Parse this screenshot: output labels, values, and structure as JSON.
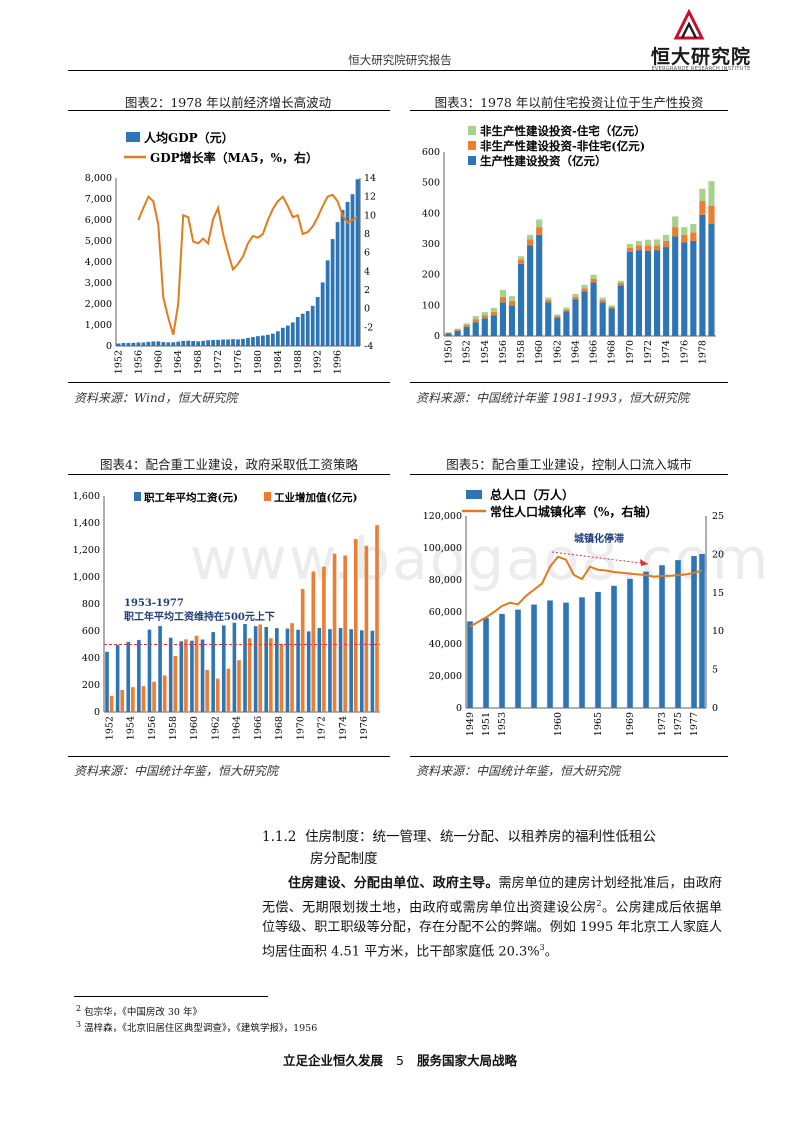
{
  "header": {
    "title": "恒大研究院研究报告",
    "logo_name": "恒大研究院",
    "logo_sub": "EVERGRANDE RESEARCH INSTITUTE",
    "logo_color": "#c8102e"
  },
  "watermark": "www.baogao8.com",
  "figures": {
    "fig2": {
      "title": "图表2：1978 年以前经济增长高波动",
      "source": "资料来源：Wind，恒大研究院"
    },
    "fig3": {
      "title": "图表3：1978 年以前住宅投资让位于生产性投资",
      "source": "资料来源：中国统计年鉴 1981-1993，恒大研究院"
    },
    "fig4": {
      "title": "图表4：配合重工业建设，政府采取低工资策略",
      "source": "资料来源：中国统计年鉴，恒大研究院"
    },
    "fig5": {
      "title": "图表5：配合重工业建设，控制人口流入城市",
      "source": "资料来源：中国统计年鉴，恒大研究院"
    }
  },
  "chart_data": [
    {
      "id": "fig2",
      "type": "bar+line",
      "series": [
        {
          "name": "人均GDP（元）",
          "type": "bar",
          "axis": "left",
          "color": "#2e75b6",
          "x": [
            1952,
            1953,
            1954,
            1955,
            1956,
            1957,
            1958,
            1959,
            1960,
            1961,
            1962,
            1963,
            1964,
            1965,
            1966,
            1967,
            1968,
            1969,
            1970,
            1971,
            1972,
            1973,
            1974,
            1975,
            1976,
            1977,
            1978,
            1979,
            1980,
            1981,
            1982,
            1983,
            1984,
            1985,
            1986,
            1987,
            1988,
            1989,
            1990,
            1991,
            1992,
            1993,
            1994,
            1995,
            1996,
            1997,
            1998,
            1999,
            2000
          ],
          "values": [
            119,
            142,
            144,
            150,
            166,
            168,
            200,
            216,
            218,
            185,
            173,
            181,
            208,
            240,
            254,
            235,
            222,
            243,
            275,
            288,
            292,
            309,
            310,
            327,
            316,
            339,
            385,
            423,
            468,
            497,
            533,
            588,
            702,
            866,
            973,
            1123,
            1378,
            1536,
            1663,
            1912,
            2334,
            3027,
            4081,
            5091,
            5898,
            6481,
            6860,
            7229,
            7942
          ]
        },
        {
          "name": "GDP增长率（MA5，%，右）",
          "type": "line",
          "axis": "right",
          "color": "#e07b1e",
          "x": [
            1956,
            1957,
            1958,
            1959,
            1960,
            1961,
            1962,
            1963,
            1964,
            1965,
            1966,
            1967,
            1968,
            1969,
            1970,
            1971,
            1972,
            1973,
            1974,
            1975,
            1976,
            1977,
            1978,
            1979,
            1980,
            1981,
            1982,
            1983,
            1984,
            1985,
            1986,
            1987,
            1988,
            1989,
            1990,
            1991,
            1992,
            1993,
            1994,
            1995,
            1996,
            1997,
            1998,
            1999,
            2000
          ],
          "values": [
            9.5,
            10.8,
            12,
            11.5,
            9,
            1.2,
            -1,
            -2.8,
            0.5,
            10,
            9.8,
            7.2,
            7,
            7.5,
            7,
            9.6,
            10.8,
            8,
            6,
            4.2,
            4.8,
            5.6,
            7,
            7.8,
            7.6,
            8,
            9.5,
            10.7,
            11.5,
            12,
            11,
            9.8,
            10,
            8,
            8.2,
            8.8,
            9.8,
            11,
            12,
            12.2,
            11.5,
            10,
            9.2,
            9.5,
            9.8
          ]
        }
      ],
      "xticks": [
        "1952",
        "1956",
        "1960",
        "1964",
        "1968",
        "1972",
        "1976",
        "1980",
        "1984",
        "1988",
        "1992",
        "1996"
      ],
      "ylim_left": [
        0,
        8000
      ],
      "yticks_left": [
        "0",
        "1,000",
        "2,000",
        "3,000",
        "4,000",
        "5,000",
        "6,000",
        "7,000",
        "8,000"
      ],
      "ylim_right": [
        -4,
        14
      ],
      "yticks_right": [
        "-4",
        "-2",
        "0",
        "2",
        "4",
        "6",
        "8",
        "10",
        "12",
        "14"
      ],
      "legend": "top-left"
    },
    {
      "id": "fig3",
      "type": "stacked-bar",
      "x": [
        1950,
        1951,
        1952,
        1953,
        1954,
        1955,
        1956,
        1957,
        1958,
        1959,
        1960,
        1961,
        1962,
        1963,
        1964,
        1965,
        1966,
        1967,
        1968,
        1969,
        1970,
        1971,
        1972,
        1973,
        1974,
        1975,
        1976,
        1977,
        1978,
        1979
      ],
      "series": [
        {
          "name": "生产性建设投资（亿元）",
          "color": "#2e75b6",
          "values": [
            9,
            17,
            30,
            45,
            58,
            67,
            110,
            100,
            235,
            295,
            330,
            110,
            60,
            80,
            120,
            145,
            175,
            110,
            90,
            165,
            275,
            280,
            278,
            280,
            290,
            325,
            305,
            310,
            395,
            365
          ]
        },
        {
          "name": "非生产性建设投资-非住宅(亿元)",
          "color": "#ed7d31",
          "values": [
            2,
            4,
            6,
            10,
            10,
            12,
            18,
            14,
            15,
            20,
            25,
            8,
            5,
            6,
            8,
            10,
            12,
            8,
            5,
            8,
            12,
            15,
            18,
            16,
            20,
            30,
            25,
            28,
            45,
            60
          ]
        },
        {
          "name": "非生产性建设投资-住宅（亿元）",
          "color": "#a9d18e",
          "values": [
            1,
            3,
            5,
            10,
            10,
            13,
            22,
            16,
            10,
            15,
            25,
            7,
            5,
            7,
            9,
            12,
            13,
            7,
            5,
            7,
            13,
            15,
            18,
            19,
            20,
            35,
            25,
            27,
            40,
            80
          ]
        }
      ],
      "xticks": [
        "1950",
        "1952",
        "1954",
        "1956",
        "1958",
        "1960",
        "1962",
        "1964",
        "1966",
        "1968",
        "1970",
        "1972",
        "1974",
        "1976",
        "1978"
      ],
      "ylim": [
        0,
        600
      ],
      "yticks": [
        "0",
        "100",
        "200",
        "300",
        "400",
        "500",
        "600"
      ],
      "legend": "top-left"
    },
    {
      "id": "fig4",
      "type": "grouped-bar",
      "x": [
        1952,
        1953,
        1954,
        1955,
        1956,
        1957,
        1958,
        1959,
        1960,
        1961,
        1962,
        1963,
        1964,
        1965,
        1966,
        1967,
        1968,
        1969,
        1970,
        1971,
        1972,
        1973,
        1974,
        1975,
        1976,
        1977
      ],
      "series": [
        {
          "name": "职工年平均工资(元)",
          "color": "#2e75b6",
          "values": [
            446,
            496,
            519,
            534,
            610,
            637,
            550,
            524,
            528,
            537,
            592,
            641,
            661,
            652,
            636,
            630,
            621,
            618,
            609,
            597,
            622,
            614,
            622,
            613,
            605,
            602
          ]
        },
        {
          "name": "工业增加值(亿元)",
          "color": "#ed7d31",
          "values": [
            120,
            163,
            184,
            192,
            224,
            271,
            415,
            538,
            565,
            311,
            247,
            321,
            383,
            546,
            648,
            546,
            505,
            658,
            911,
            1041,
            1077,
            1173,
            1159,
            1281,
            1231,
            1384
          ]
        }
      ],
      "reference_line": {
        "value": 500,
        "color": "#e0303c"
      },
      "annotation": [
        "1953-1977",
        "职工年平均工资维持在500元上下"
      ],
      "xticks": [
        "1952",
        "1954",
        "1956",
        "1958",
        "1960",
        "1962",
        "1964",
        "1966",
        "1968",
        "1970",
        "1972",
        "1974",
        "1976"
      ],
      "ylim": [
        0,
        1600
      ],
      "yticks": [
        "0",
        "200",
        "400",
        "600",
        "800",
        "1,000",
        "1,200",
        "1,400",
        "1,600"
      ],
      "legend": "top"
    },
    {
      "id": "fig5",
      "type": "bar+line",
      "x": [
        1949,
        1950,
        1951,
        1952,
        1953,
        1954,
        1955,
        1956,
        1957,
        1958,
        1959,
        1960,
        1961,
        1962,
        1963,
        1964,
        1965,
        1966,
        1967,
        1968,
        1969,
        1970,
        1971,
        1972,
        1973,
        1974,
        1975,
        1976,
        1977,
        1978
      ],
      "series": [
        {
          "name": "总人口（万人）",
          "type": "bar",
          "axis": "left",
          "color": "#2e75b6",
          "values": [
            54167,
            55196,
            56300,
            57482,
            58796,
            60266,
            61465,
            62828,
            64653,
            65994,
            67207,
            66207,
            65859,
            67295,
            69172,
            70499,
            72538,
            74542,
            76368,
            78534,
            80671,
            82992,
            85229,
            87177,
            89211,
            90859,
            92420,
            93717,
            94974,
            96259
          ]
        },
        {
          "name": "常住人口城镇化率（%，右轴）",
          "type": "line",
          "axis": "right",
          "color": "#e07b1e",
          "values": [
            10.6,
            11.2,
            11.8,
            12.5,
            13.3,
            13.7,
            13.5,
            14.6,
            15.4,
            16.2,
            18.4,
            19.7,
            19.3,
            17.3,
            16.8,
            18.4,
            18.0,
            17.9,
            17.7,
            17.6,
            17.5,
            17.4,
            17.3,
            17.1,
            17.2,
            17.2,
            17.3,
            17.4,
            17.6,
            17.9
          ]
        }
      ],
      "annotation": "城镇化停滞",
      "xticks": [
        "1949",
        "1951",
        "1953",
        "1955",
        "1957",
        "1959",
        "1961",
        "1963",
        "1965",
        "1967",
        "1969",
        "1971",
        "1973",
        "1975",
        "1977"
      ],
      "xticks_shown": [
        "1949",
        "1951",
        "1953",
        "1960",
        "1965",
        "1969",
        "1973",
        "1975",
        "1977"
      ],
      "ylim_left": [
        0,
        120000
      ],
      "yticks_left": [
        "0",
        "20,000",
        "40,000",
        "60,000",
        "80,000",
        "100,000",
        "120,000"
      ],
      "ylim_right": [
        0,
        25
      ],
      "yticks_right": [
        "0",
        "5",
        "10",
        "15",
        "20",
        "25"
      ],
      "legend": "top-left"
    }
  ],
  "section": {
    "number": "1.1.2",
    "title_line1": "住房制度：统一管理、统一分配、以租养房的福利性低租公",
    "title_line2": "房分配制度"
  },
  "body": {
    "lead": "住房建设、分配由单位、政府主导。",
    "text1": "需房单位的建房计划经批准后，由政府无偿、无期限划拨土地，由政府或需房单位出资建设公房",
    "sup1": "2",
    "text2": "。公房建成后依据单位等级、职工职级等分配，存在分配不公的弊端。例如 1995 年北京工人家庭人均居住面积 4.51 平方米，比干部家庭低 20.3%",
    "sup2": "3",
    "text3": "。"
  },
  "footnotes": [
    {
      "num": "2",
      "text": "包宗华，《中国房改 30 年》"
    },
    {
      "num": "3",
      "text": "温梓森，《北京旧居住区典型调查》，《建筑学报》，1956"
    }
  ],
  "footer": {
    "left": "立足企业恒久发展",
    "page": "5",
    "right": "服务国家大局战略"
  }
}
